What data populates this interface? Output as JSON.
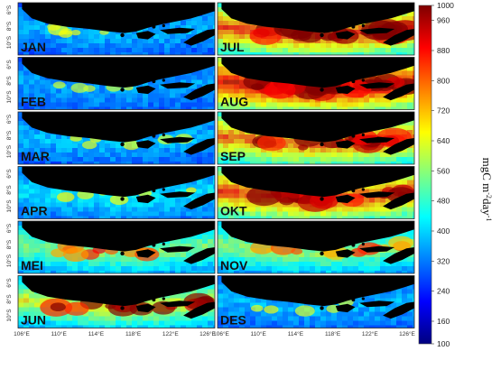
{
  "panels": [
    {
      "label": "JAN",
      "coastal": 0.25,
      "offshore": 0.05,
      "hotspots": 0.1
    },
    {
      "label": "FEB",
      "coastal": 0.18,
      "offshore": 0.06,
      "hotspots": 0.05
    },
    {
      "label": "MAR",
      "coastal": 0.25,
      "offshore": 0.06,
      "hotspots": 0.1
    },
    {
      "label": "APR",
      "coastal": 0.3,
      "offshore": 0.1,
      "hotspots": 0.12
    },
    {
      "label": "MEI",
      "coastal": 0.55,
      "offshore": 0.18,
      "hotspots": 0.45
    },
    {
      "label": "JUN",
      "coastal": 0.75,
      "offshore": 0.22,
      "hotspots": 0.7
    },
    {
      "label": "JUL",
      "coastal": 1.0,
      "offshore": 0.42,
      "hotspots": 1.0
    },
    {
      "label": "AUG",
      "coastal": 1.0,
      "offshore": 0.55,
      "hotspots": 1.0
    },
    {
      "label": "SEP",
      "coastal": 0.9,
      "offshore": 0.4,
      "hotspots": 0.9
    },
    {
      "label": "OKT",
      "coastal": 0.95,
      "offshore": 0.45,
      "hotspots": 0.85
    },
    {
      "label": "NOV",
      "coastal": 0.6,
      "offshore": 0.18,
      "hotspots": 0.4
    },
    {
      "label": "DES",
      "coastal": 0.2,
      "offshore": 0.08,
      "hotspots": 0.08
    }
  ],
  "lon_ticks": [
    "106°E",
    "110°E",
    "114°E",
    "118°E",
    "122°E",
    "126°E"
  ],
  "lat_ticks": [
    "6°S",
    "8°S",
    "10°S",
    "12°S"
  ],
  "colorbar": {
    "min": 100,
    "max": 1000,
    "ticks": [
      "1000",
      "960",
      "880",
      "800",
      "720",
      "640",
      "560",
      "480",
      "400",
      "320",
      "240",
      "160",
      "100"
    ],
    "unit_main": "mgC m",
    "unit_sup1": "-2",
    "unit_mid": "day",
    "unit_sup2": "-1",
    "stops": [
      "#00007f",
      "#0000ff",
      "#0080ff",
      "#00ffff",
      "#80ff80",
      "#ffff00",
      "#ff8000",
      "#ff0000",
      "#7f0000"
    ]
  },
  "land_color": "#000000",
  "nodata_color": "#ffffff"
}
